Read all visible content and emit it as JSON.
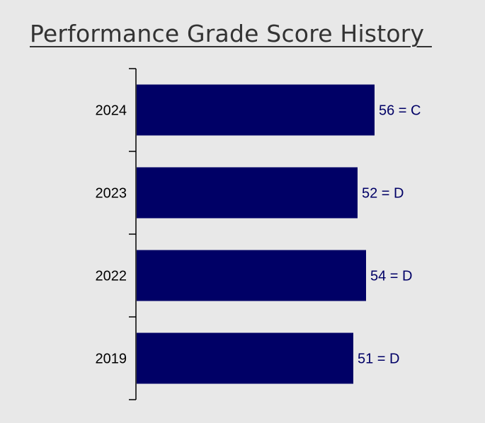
{
  "chart_data": {
    "type": "bar",
    "orientation": "horizontal",
    "title": "Performance Grade Score History ",
    "categories": [
      "2024",
      "2023",
      "2022",
      "2019"
    ],
    "values": [
      56,
      52,
      54,
      51
    ],
    "data_labels": [
      "56 = C",
      "52 = D",
      "54 = D",
      "51 = D"
    ],
    "xlim": [
      0,
      100
    ],
    "grid": false,
    "legend": "none",
    "colors": {
      "bar": "#000066",
      "data_label": "#000066",
      "axis": "#000000",
      "background": "#e8e8e8",
      "title": "#333333"
    }
  }
}
